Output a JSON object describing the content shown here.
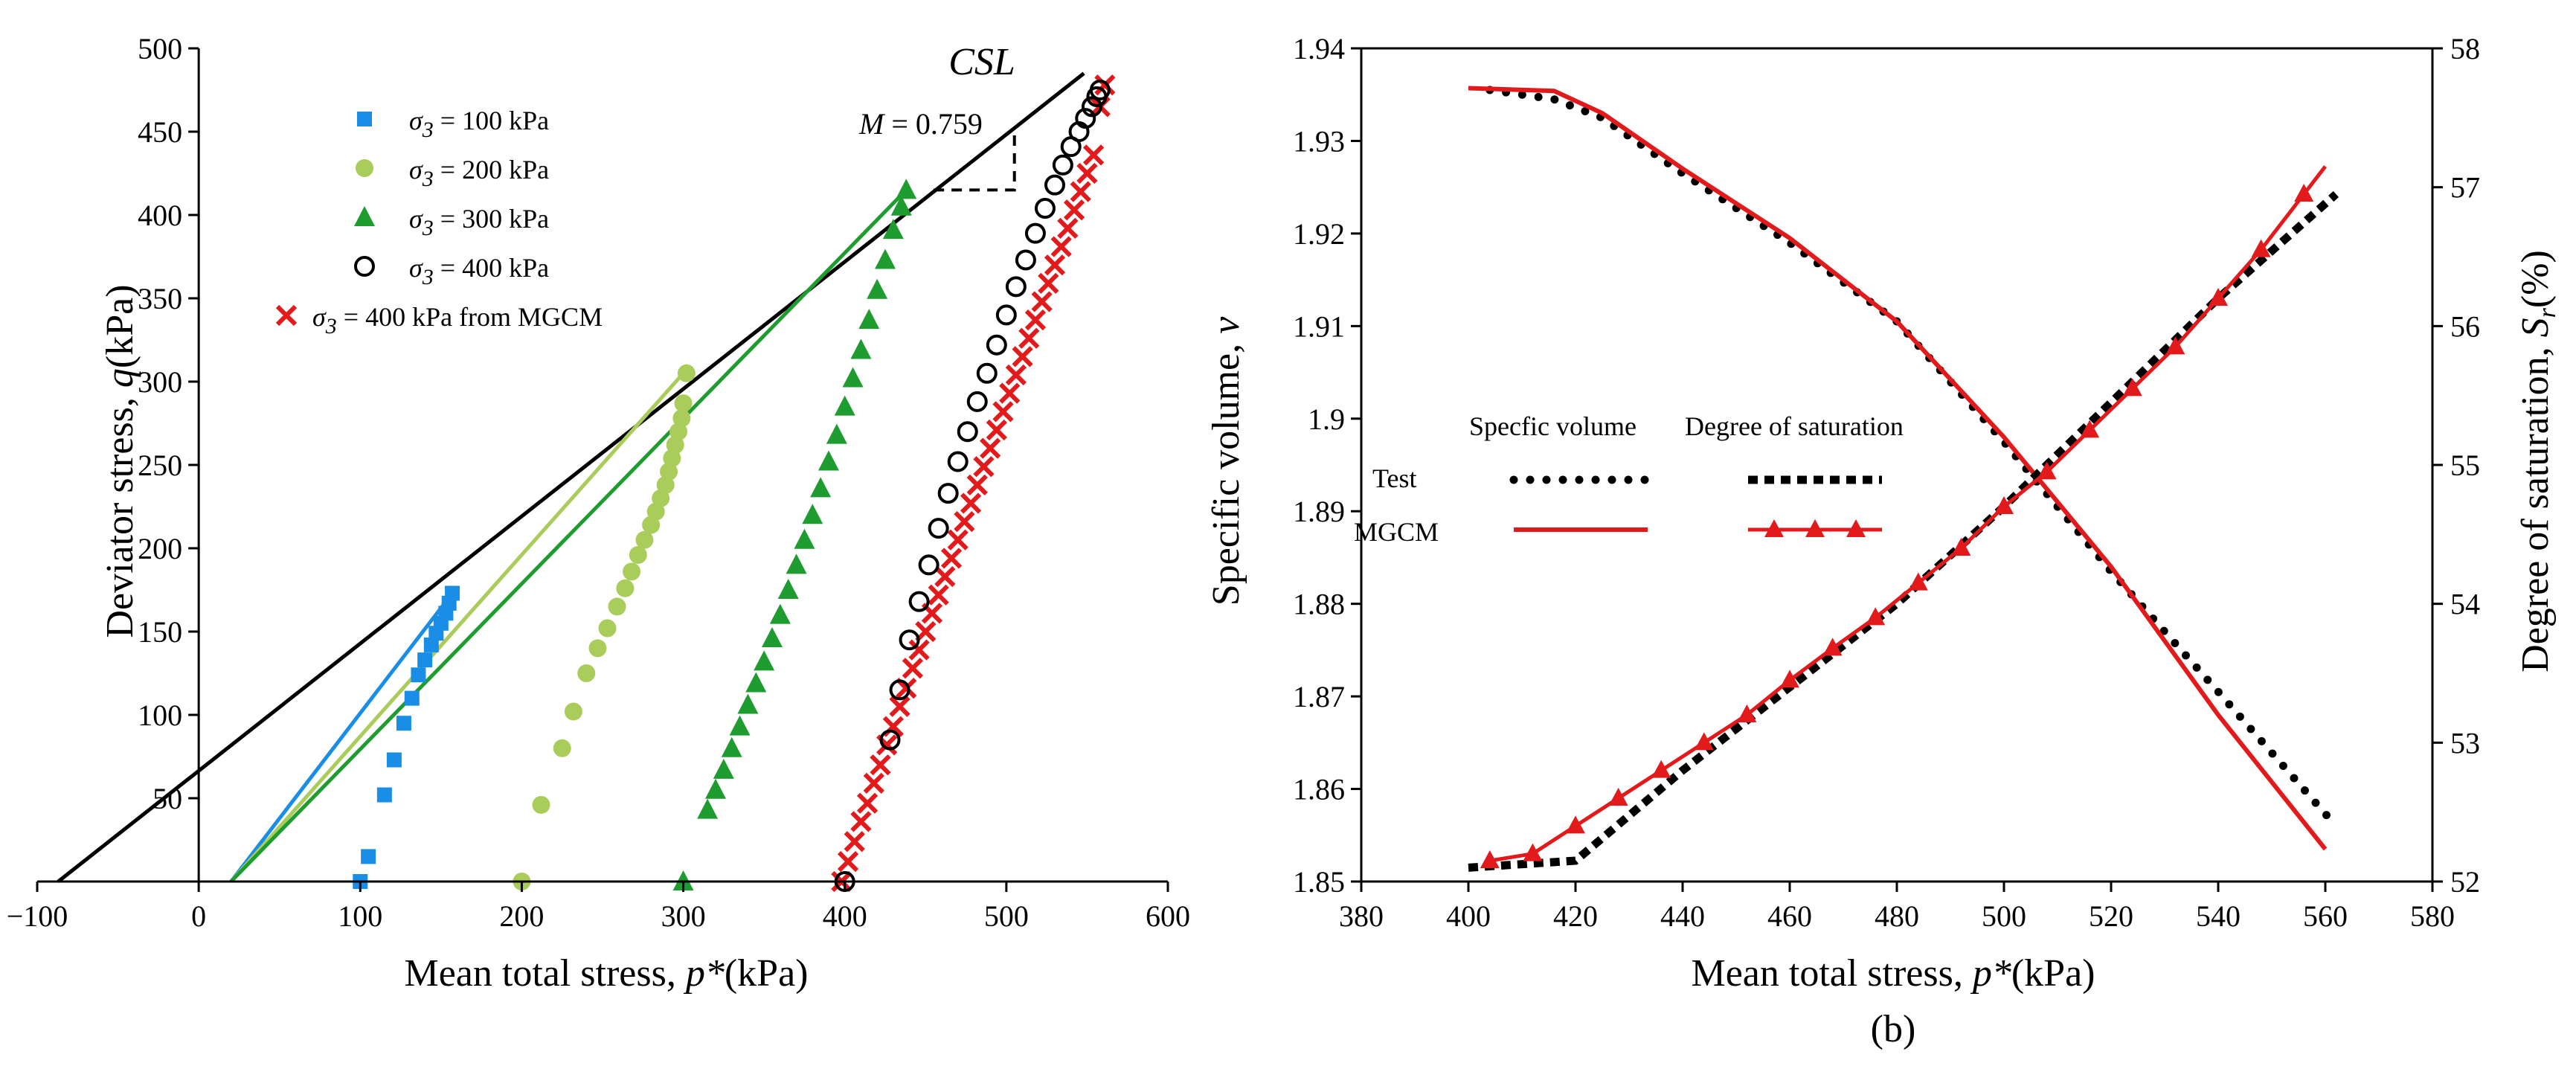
{
  "chart_data": [
    {
      "type": "scatter",
      "panel": "a",
      "title": "",
      "xlabel": "Mean total stress, p*(kPa)",
      "ylabel": "Deviator stress, q(kPa)",
      "xlim": [
        -100,
        600
      ],
      "ylim": [
        0,
        500
      ],
      "xticks": [
        -100,
        0,
        100,
        200,
        300,
        400,
        500,
        600
      ],
      "yticks": [
        50,
        100,
        150,
        200,
        250,
        300,
        350,
        400,
        450,
        500
      ],
      "colors": {
        "s100": "#1a8ee6",
        "s200": "#a9cc5a",
        "s300": "#1f9c30",
        "s400": "#000000",
        "mgcm": "#e31a1c",
        "csl": "#000000"
      },
      "series": [
        {
          "name": "σ3 = 100 kPa",
          "sigma": "σ",
          "sub": "3",
          "rest": " = 100 kPa",
          "marker": "square",
          "color": "#1a8ee6",
          "x": [
            100,
            105,
            115,
            121,
            127,
            132,
            136,
            140,
            144,
            147,
            150,
            153,
            155,
            157
          ],
          "y": [
            0,
            15,
            52,
            73,
            95,
            110,
            124,
            133,
            142,
            149,
            155,
            161,
            167,
            173
          ]
        },
        {
          "name": "σ3 = 200 kPa",
          "sigma": "σ",
          "sub": "3",
          "rest": " = 200 kPa",
          "marker": "circle",
          "color": "#a9cc5a",
          "x": [
            200,
            212,
            225,
            232,
            240,
            247,
            253,
            259,
            264,
            268,
            272,
            276,
            280,
            283,
            286,
            289,
            291,
            293,
            295,
            297,
            299,
            300,
            302
          ],
          "y": [
            0,
            46,
            80,
            102,
            125,
            140,
            152,
            165,
            176,
            186,
            196,
            205,
            214,
            222,
            230,
            238,
            246,
            254,
            262,
            270,
            278,
            287,
            305
          ]
        },
        {
          "name": "σ3 = 300 kPa",
          "sigma": "σ",
          "sub": "3",
          "rest": " = 300 kPa",
          "marker": "triangle",
          "color": "#1f9c30",
          "x": [
            300,
            315,
            320,
            325,
            330,
            335,
            340,
            345,
            350,
            355,
            360,
            365,
            370,
            375,
            380,
            385,
            390,
            395,
            400,
            405,
            410,
            415,
            420,
            425,
            430,
            435,
            438
          ],
          "y": [
            0,
            43,
            55,
            67,
            80,
            93,
            106,
            119,
            132,
            146,
            160,
            175,
            190,
            205,
            220,
            236,
            252,
            268,
            285,
            302,
            319,
            337,
            355,
            373,
            391,
            405,
            415
          ]
        },
        {
          "name": "σ3 = 400 kPa",
          "sigma": "σ",
          "sub": "3",
          "rest": " = 400 kPa",
          "marker": "open-circle",
          "color": "#000000",
          "x": [
            400,
            428,
            434,
            440,
            446,
            452,
            458,
            464,
            470,
            476,
            482,
            488,
            494,
            500,
            506,
            512,
            518,
            524,
            530,
            535,
            540,
            545,
            549,
            553,
            556,
            558
          ],
          "y": [
            0,
            85,
            115,
            145,
            168,
            190,
            212,
            233,
            252,
            270,
            288,
            305,
            322,
            340,
            357,
            373,
            389,
            404,
            418,
            430,
            441,
            450,
            458,
            465,
            471,
            475
          ]
        },
        {
          "name": "σ3 = 400 kPa from MGCM",
          "sigma": "σ",
          "sub": "3",
          "rest": " = 400 kPa from MGCM",
          "marker": "x",
          "color": "#e31a1c",
          "x": [
            398,
            402,
            406,
            410,
            414,
            418,
            422,
            426,
            430,
            434,
            438,
            442,
            446,
            450,
            454,
            458,
            462,
            466,
            470,
            474,
            478,
            482,
            486,
            490,
            494,
            498,
            502,
            506,
            510,
            514,
            518,
            522,
            526,
            530,
            534,
            538,
            542,
            546,
            550,
            554,
            558,
            561
          ],
          "y": [
            0,
            12,
            24,
            36,
            47,
            59,
            70,
            82,
            93,
            105,
            116,
            128,
            139,
            150,
            161,
            172,
            183,
            194,
            205,
            216,
            227,
            238,
            249,
            260,
            271,
            282,
            293,
            304,
            315,
            326,
            337,
            348,
            359,
            370,
            381,
            392,
            403,
            414,
            425,
            436,
            465,
            478
          ]
        }
      ],
      "lines": [
        {
          "name": "CSL",
          "color": "#000000",
          "x": [
            -87,
            548
          ],
          "y": [
            0,
            485
          ]
        },
        {
          "name": "σ3 = 100 kPa fit",
          "color": "#1a8ee6",
          "x": [
            20,
            157
          ],
          "y": [
            0,
            173
          ]
        },
        {
          "name": "σ3 = 200 kPa fit",
          "color": "#a9cc5a",
          "x": [
            20,
            300
          ],
          "y": [
            0,
            305
          ]
        },
        {
          "name": "σ3 = 300 kPa fit",
          "color": "#1f9c30",
          "x": [
            20,
            438
          ],
          "y": [
            0,
            415
          ]
        }
      ],
      "annotations": {
        "csl": "CSL",
        "slope_symbol": "M",
        "slope_text": " = 0.759",
        "slope_triangle": {
          "x": [
            455,
            505,
            505
          ],
          "y": [
            415,
            415,
            450
          ]
        }
      }
    },
    {
      "type": "line",
      "panel": "b",
      "caption": "(b)",
      "xlabel": "Mean total stress, p*(kPa)",
      "ylabel": "Specific volume, v",
      "y2label": "Degree of saturation, Sr(%)",
      "xlim": [
        380,
        580
      ],
      "ylim": [
        1.85,
        1.94
      ],
      "y2lim": [
        52,
        58
      ],
      "xticks": [
        380,
        400,
        420,
        440,
        460,
        480,
        500,
        520,
        540,
        560,
        580
      ],
      "yticks": [
        1.85,
        1.86,
        1.87,
        1.88,
        1.89,
        1.9,
        1.91,
        1.92,
        1.93,
        1.94
      ],
      "ytick_labels": [
        "1.85",
        "1.86",
        "1.87",
        "1.88",
        "1.89",
        "1.9",
        "1.91",
        "1.92",
        "1.93",
        "1.94"
      ],
      "y2ticks": [
        52,
        53,
        54,
        55,
        56,
        57,
        58
      ],
      "legend": {
        "col1": "Specfic volume",
        "col2": "Degree of saturation",
        "row1": "Test",
        "row2": "MGCM"
      },
      "series": [
        {
          "name": "Specific volume Test",
          "axis": "left",
          "style": "dotted",
          "color": "#000000",
          "x": [
            404,
            416,
            425,
            440,
            460,
            480,
            500,
            520,
            540,
            562
          ],
          "y": [
            1.9355,
            1.9345,
            1.9325,
            1.9265,
            1.919,
            1.9105,
            1.8975,
            1.8835,
            1.8705,
            1.856
          ]
        },
        {
          "name": "Specific volume MGCM",
          "axis": "left",
          "style": "solid",
          "color": "#e31a1c",
          "x": [
            400,
            416,
            425,
            440,
            460,
            480,
            500,
            520,
            540,
            560
          ],
          "y": [
            1.9357,
            1.9354,
            1.933,
            1.927,
            1.9195,
            1.9105,
            1.898,
            1.884,
            1.868,
            1.8535
          ]
        },
        {
          "name": "Degree of saturation Test",
          "axis": "right",
          "style": "dashed",
          "color": "#000000",
          "x": [
            400,
            420,
            440,
            460,
            480,
            500,
            520,
            540,
            562
          ],
          "y": [
            52.1,
            52.15,
            52.8,
            53.4,
            54.0,
            54.7,
            55.45,
            56.2,
            56.95
          ]
        },
        {
          "name": "Degree of saturation MGCM",
          "axis": "right",
          "style": "solid-triangle",
          "color": "#e31a1c",
          "x": [
            404,
            412,
            420,
            428,
            436,
            444,
            452,
            460,
            468,
            476,
            484,
            492,
            500,
            508,
            516,
            524,
            532,
            540,
            548,
            556,
            560
          ],
          "y": [
            52.15,
            52.2,
            52.4,
            52.6,
            52.8,
            53.0,
            53.2,
            53.45,
            53.68,
            53.9,
            54.15,
            54.4,
            54.7,
            54.95,
            55.25,
            55.55,
            55.85,
            56.2,
            56.55,
            56.95,
            57.15
          ]
        }
      ]
    }
  ]
}
